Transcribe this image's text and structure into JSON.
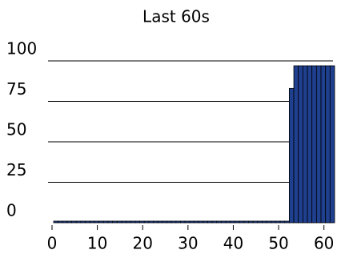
{
  "chart_data": {
    "type": "bar",
    "title": "Last 60s",
    "x": [
      0,
      1,
      2,
      3,
      4,
      5,
      6,
      7,
      8,
      9,
      10,
      11,
      12,
      13,
      14,
      15,
      16,
      17,
      18,
      19,
      20,
      21,
      22,
      23,
      24,
      25,
      26,
      27,
      28,
      29,
      30,
      31,
      32,
      33,
      34,
      35,
      36,
      37,
      38,
      39,
      40,
      41,
      42,
      43,
      44,
      45,
      46,
      47,
      48,
      49,
      50,
      51,
      52,
      53,
      54,
      55,
      56,
      57,
      58,
      59,
      60,
      61
    ],
    "values": [
      1,
      1,
      1,
      1,
      1,
      1,
      1,
      1,
      1,
      1,
      1,
      1,
      1,
      1,
      1,
      1,
      1,
      1,
      1,
      1,
      1,
      1,
      1,
      1,
      1,
      1,
      1,
      1,
      1,
      1,
      1,
      1,
      1,
      1,
      1,
      1,
      1,
      1,
      1,
      1,
      1,
      1,
      1,
      1,
      1,
      1,
      1,
      1,
      1,
      1,
      1,
      1,
      83,
      97,
      97,
      97,
      97,
      97,
      97,
      97,
      97,
      97
    ],
    "color": "#1f3f8f",
    "xlim": [
      0,
      62
    ],
    "xticks": [
      0,
      10,
      20,
      30,
      40,
      50,
      60
    ],
    "ylim": [
      0,
      100
    ],
    "yticks": [
      0,
      25,
      50,
      75,
      100
    ],
    "grid": true
  }
}
